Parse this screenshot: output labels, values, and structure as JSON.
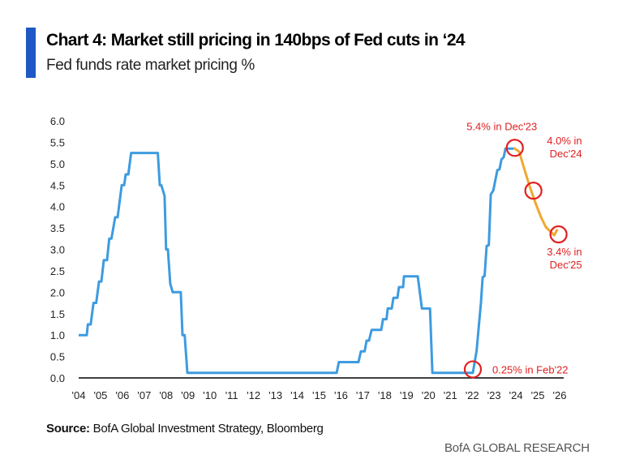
{
  "header": {
    "title": "Chart 4: Market still pricing in 140bps of Fed cuts in ‘24",
    "subtitle": "Fed funds rate market pricing %",
    "accent_color": "#1f58c4"
  },
  "source": {
    "label": "Source:",
    "text": " BofA Global Investment Strategy, Bloomberg"
  },
  "footer": {
    "brand": "BofA GLOBAL RESEARCH"
  },
  "chart_data": {
    "type": "line",
    "title": "Chart 4: Market still pricing in 140bps of Fed cuts in ‘24",
    "subtitle": "Fed funds rate market pricing %",
    "xlabel": "",
    "ylabel": "",
    "xlim": [
      2004,
      2026
    ],
    "ylim": [
      0,
      6
    ],
    "grid": false,
    "y_ticks": [
      "0.0",
      "0.5",
      "1.0",
      "1.5",
      "2.0",
      "2.5",
      "3.0",
      "3.5",
      "4.0",
      "4.5",
      "5.0",
      "5.5",
      "6.0"
    ],
    "x_ticks": [
      "'04",
      "'05",
      "'06",
      "'07",
      "'08",
      "'09",
      "'10",
      "'11",
      "'12",
      "'13",
      "'14",
      "'15",
      "'16",
      "'17",
      "'18",
      "'19",
      "'20",
      "'21",
      "'22",
      "'23",
      "'24",
      "'25",
      "'26"
    ],
    "series": [
      {
        "color": "#3d9be0",
        "points": [
          [
            2004.0,
            1.0
          ],
          [
            2004.37,
            1.0
          ],
          [
            2004.42,
            1.25
          ],
          [
            2004.55,
            1.25
          ],
          [
            2004.68,
            1.75
          ],
          [
            2004.8,
            1.75
          ],
          [
            2004.93,
            2.25
          ],
          [
            2005.04,
            2.25
          ],
          [
            2005.15,
            2.75
          ],
          [
            2005.3,
            2.75
          ],
          [
            2005.4,
            3.25
          ],
          [
            2005.5,
            3.25
          ],
          [
            2005.67,
            3.75
          ],
          [
            2005.78,
            3.75
          ],
          [
            2005.97,
            4.5
          ],
          [
            2006.08,
            4.5
          ],
          [
            2006.15,
            4.75
          ],
          [
            2006.27,
            4.75
          ],
          [
            2006.4,
            5.25
          ],
          [
            2007.62,
            5.25
          ],
          [
            2007.71,
            4.5
          ],
          [
            2007.78,
            4.5
          ],
          [
            2007.93,
            4.25
          ],
          [
            2008.0,
            3.0
          ],
          [
            2008.08,
            3.0
          ],
          [
            2008.19,
            2.2
          ],
          [
            2008.3,
            2.0
          ],
          [
            2008.67,
            2.0
          ],
          [
            2008.75,
            1.0
          ],
          [
            2008.85,
            1.0
          ],
          [
            2008.97,
            0.12
          ],
          [
            2015.8,
            0.12
          ],
          [
            2015.9,
            0.37
          ],
          [
            2016.8,
            0.37
          ],
          [
            2016.91,
            0.62
          ],
          [
            2017.08,
            0.62
          ],
          [
            2017.17,
            0.87
          ],
          [
            2017.28,
            0.87
          ],
          [
            2017.4,
            1.12
          ],
          [
            2017.84,
            1.12
          ],
          [
            2017.92,
            1.37
          ],
          [
            2018.08,
            1.37
          ],
          [
            2018.14,
            1.62
          ],
          [
            2018.32,
            1.62
          ],
          [
            2018.4,
            1.87
          ],
          [
            2018.58,
            1.87
          ],
          [
            2018.65,
            2.12
          ],
          [
            2018.84,
            2.12
          ],
          [
            2018.88,
            2.37
          ],
          [
            2019.51,
            2.37
          ],
          [
            2019.7,
            1.62
          ],
          [
            2020.07,
            1.62
          ],
          [
            2020.18,
            0.12
          ],
          [
            2022.03,
            0.12
          ],
          [
            2022.2,
            0.63
          ],
          [
            2022.4,
            1.76
          ],
          [
            2022.48,
            2.35
          ],
          [
            2022.57,
            2.38
          ],
          [
            2022.66,
            3.08
          ],
          [
            2022.76,
            3.1
          ],
          [
            2022.85,
            4.28
          ],
          [
            2022.97,
            4.38
          ],
          [
            2023.15,
            4.85
          ],
          [
            2023.25,
            4.87
          ],
          [
            2023.34,
            5.1
          ],
          [
            2023.44,
            5.15
          ],
          [
            2023.52,
            5.35
          ],
          [
            2023.9,
            5.35
          ]
        ]
      },
      {
        "color": "#f0a830",
        "points": [
          [
            2023.9,
            5.37
          ],
          [
            2024.15,
            5.28
          ],
          [
            2024.4,
            4.85
          ],
          [
            2024.63,
            4.47
          ],
          [
            2024.89,
            4.09
          ],
          [
            2025.15,
            3.75
          ],
          [
            2025.37,
            3.52
          ],
          [
            2025.75,
            3.33
          ],
          [
            2025.9,
            3.47
          ]
        ]
      }
    ],
    "annotations": [
      {
        "text": [
          "5.4% in  Dec'23"
        ],
        "x": 2023.95,
        "y": 5.37
      },
      {
        "text": [
          "4.0% in",
          "Dec'24"
        ],
        "x": 2024.8,
        "y": 4.37
      },
      {
        "text": [
          "3.4% in",
          "Dec'25"
        ],
        "x": 2025.95,
        "y": 3.35
      },
      {
        "text": [
          "0.25% in Feb'22"
        ],
        "x": 2022.03,
        "y": 0.2
      }
    ],
    "annotation_color": "#e02020"
  }
}
